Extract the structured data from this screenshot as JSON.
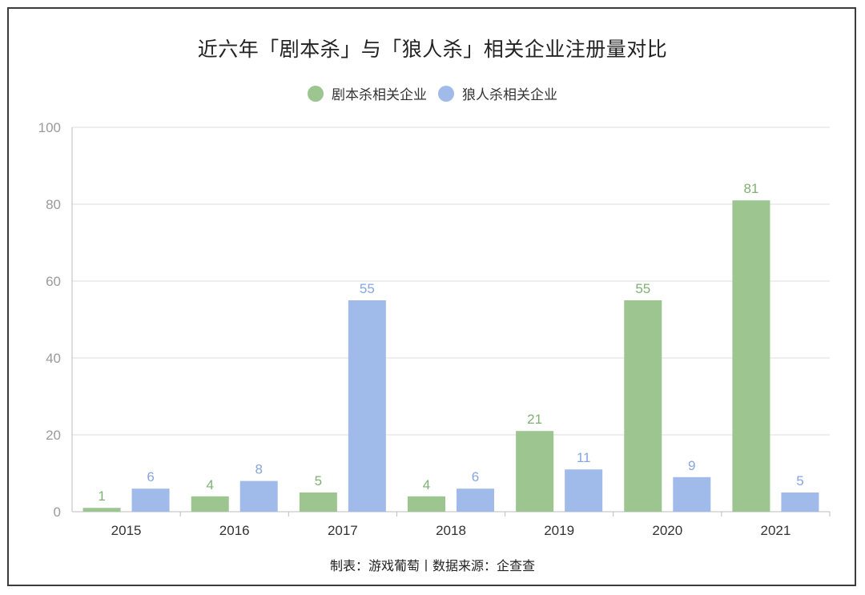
{
  "chart_data": {
    "type": "bar",
    "title": "近六年「剧本杀」与「狼人杀」相关企业注册量对比",
    "categories": [
      "2015",
      "2016",
      "2017",
      "2018",
      "2019",
      "2020",
      "2021"
    ],
    "series": [
      {
        "name": "剧本杀相关企业",
        "color": "#9cc590",
        "label_color": "#7fb173",
        "values": [
          1,
          4,
          5,
          4,
          21,
          55,
          81
        ]
      },
      {
        "name": "狼人杀相关企业",
        "color": "#a0baea",
        "label_color": "#86a6e0",
        "values": [
          6,
          8,
          55,
          6,
          11,
          9,
          5
        ]
      }
    ],
    "ylim": [
      0,
      100
    ],
    "yticks": [
      0,
      20,
      40,
      60,
      80,
      100
    ],
    "grid": true,
    "legend_position": "top-center",
    "xlabel": "",
    "ylabel": ""
  },
  "caption": "制表：游戏葡萄丨数据来源：企查查"
}
